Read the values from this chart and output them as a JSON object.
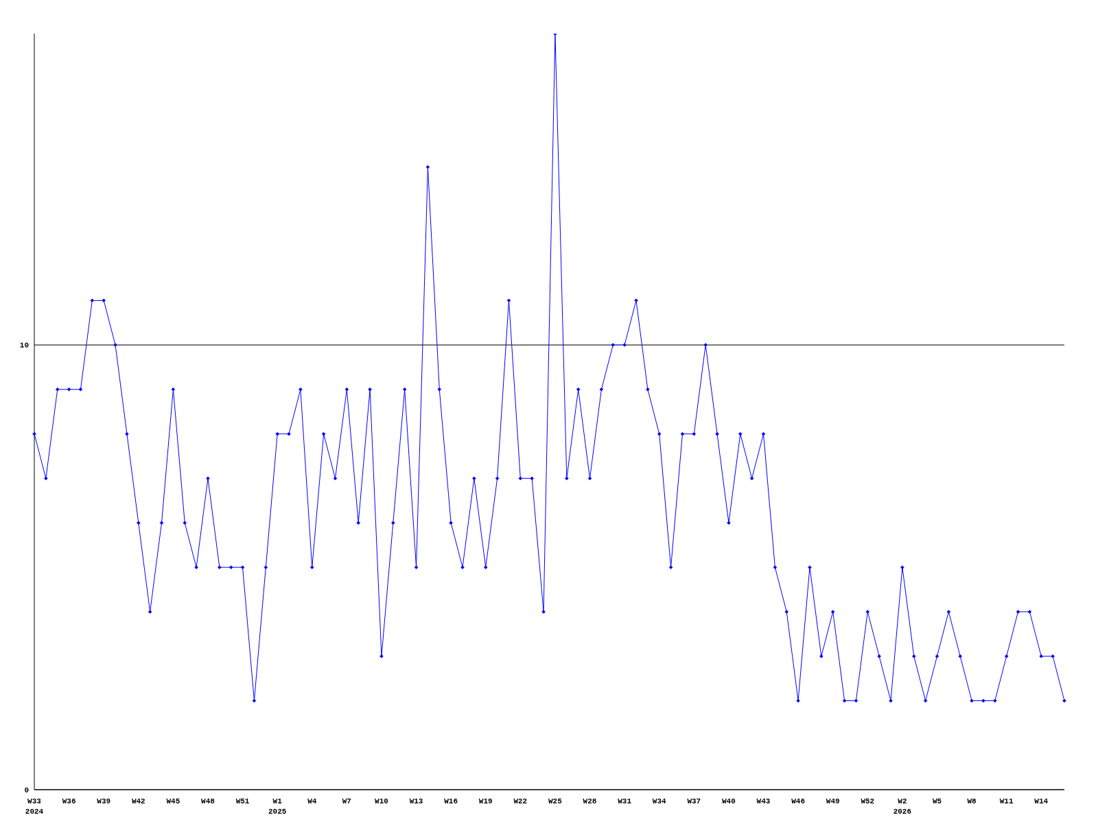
{
  "chart_data": {
    "type": "line",
    "categories": [
      "W33\n2024",
      null,
      null,
      "W36",
      null,
      null,
      "W39",
      null,
      null,
      "W42",
      null,
      null,
      "W45",
      null,
      null,
      "W48",
      null,
      null,
      "W51",
      null,
      null,
      "W1\n2025",
      null,
      null,
      "W4",
      null,
      null,
      "W7",
      null,
      null,
      "W10",
      null,
      null,
      "W13",
      null,
      null,
      "W16",
      null,
      null,
      "W19",
      null,
      null,
      "W22",
      null,
      null,
      "W25",
      null,
      null,
      "W28",
      null,
      null,
      "W31",
      null,
      null,
      "W34",
      null,
      null,
      "W37",
      null,
      null,
      "W40",
      null,
      null,
      "W43",
      null,
      null,
      "W46",
      null,
      null,
      "W49",
      null,
      null,
      "W52",
      null,
      null,
      "W2\n2026",
      null,
      null,
      "W5",
      null,
      null,
      "W8",
      null,
      null,
      "W11",
      null,
      null,
      "W14",
      null,
      null
    ],
    "series": [
      {
        "color": "#0000ff",
        "values": [
          8,
          7,
          9,
          9,
          9,
          11,
          11,
          10,
          8,
          6,
          4,
          6,
          9,
          6,
          5,
          7,
          5,
          5,
          5,
          2,
          5,
          8,
          8,
          9,
          5,
          8,
          7,
          9,
          6,
          9,
          3,
          6,
          9,
          5,
          14,
          9,
          6,
          5,
          7,
          5,
          7,
          11,
          7,
          7,
          4,
          17,
          7,
          9,
          7,
          9,
          10,
          10,
          11,
          9,
          8,
          5,
          8,
          8,
          10,
          8,
          6,
          8,
          7,
          8,
          5,
          4,
          2,
          5,
          3,
          4,
          2,
          2,
          4,
          3,
          2,
          5,
          3,
          2,
          3,
          4,
          3,
          2,
          2,
          2,
          3,
          4,
          4,
          3,
          3,
          2
        ]
      }
    ],
    "ylim": [
      0,
      17
    ],
    "yticks": [
      0,
      10
    ],
    "grid": "y",
    "marker": "diamond",
    "line_style": "solid"
  }
}
